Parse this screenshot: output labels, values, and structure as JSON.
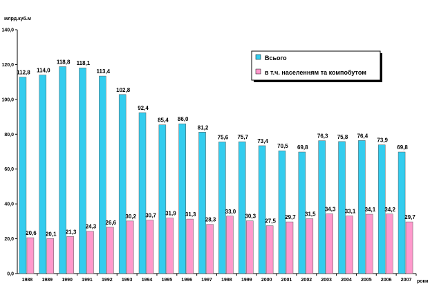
{
  "chart_data": {
    "type": "bar",
    "ylabel": "млрд.куб.м",
    "xunit": "роки",
    "ylim": [
      0,
      140
    ],
    "yticks": [
      "0,0",
      "20,0",
      "40,0",
      "60,0",
      "80,0",
      "100,0",
      "120,0",
      "140,0"
    ],
    "categories": [
      "1988",
      "1989",
      "1990",
      "1991",
      "1992",
      "1993",
      "1994",
      "1995",
      "1996",
      "1997",
      "1998",
      "1999",
      "2000",
      "2001",
      "2002",
      "2003",
      "2004",
      "2005",
      "2006",
      "2007"
    ],
    "series": [
      {
        "name": "Всього",
        "color": "#33CCEE",
        "values": [
          112.8,
          114.0,
          118.8,
          118.1,
          113.4,
          102.8,
          92.4,
          85.4,
          86.0,
          81.2,
          75.6,
          75.7,
          73.4,
          70.5,
          69.8,
          76.3,
          75.8,
          76.4,
          73.9,
          69.8
        ],
        "labels": [
          "112,8",
          "114,0",
          "118,8",
          "118,1",
          "113,4",
          "102,8",
          "92,4",
          "85,4",
          "86,0",
          "81,2",
          "75,6",
          "75,7",
          "73,4",
          "70,5",
          "69,8",
          "76,3",
          "75,8",
          "76,4",
          "73,9",
          "69,8"
        ]
      },
      {
        "name": "в т.ч. населенням та компобутом",
        "color": "#FF99CC",
        "values": [
          20.6,
          20.1,
          21.3,
          24.3,
          26.6,
          30.2,
          30.7,
          31.9,
          31.3,
          28.3,
          33.0,
          30.3,
          27.5,
          29.7,
          31.5,
          34.3,
          33.1,
          34.1,
          34.2,
          29.7
        ],
        "labels": [
          "20,6",
          "20,1",
          "21,3",
          "24,3",
          "26,6",
          "30,2",
          "30,7",
          "31,9",
          "31,3",
          "28,3",
          "33,0",
          "30,3",
          "27,5",
          "29,7",
          "31,5",
          "34,3",
          "33,1",
          "34,1",
          "34,2",
          "29,7"
        ]
      }
    ],
    "legend": "top-right"
  }
}
